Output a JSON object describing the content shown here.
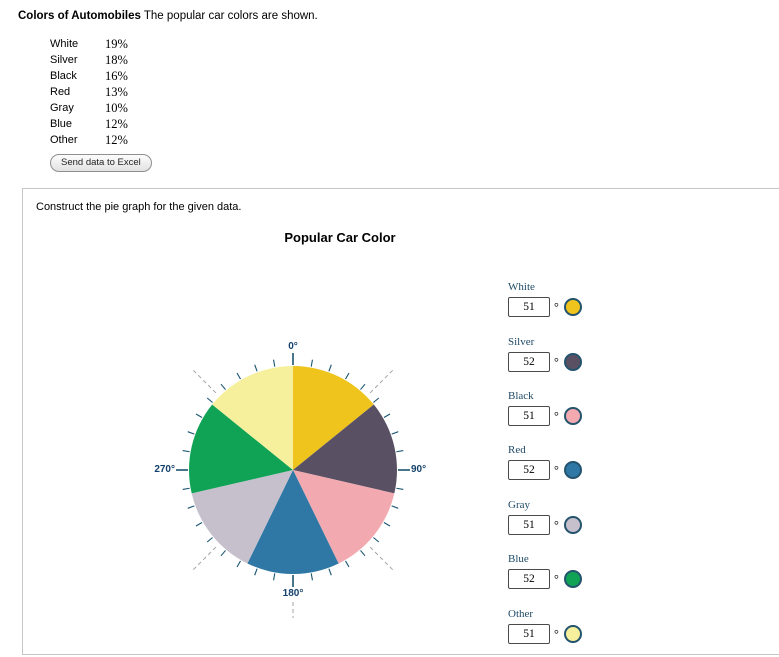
{
  "header": {
    "title": "Colors of Automobiles",
    "subtitle": "The popular car colors are shown."
  },
  "frequency_table": {
    "rows": [
      {
        "label": "White",
        "value": "19%"
      },
      {
        "label": "Silver",
        "value": "18%"
      },
      {
        "label": "Black",
        "value": "16%"
      },
      {
        "label": "Red",
        "value": "13%"
      },
      {
        "label": "Gray",
        "value": "10%"
      },
      {
        "label": "Blue",
        "value": "12%"
      },
      {
        "label": "Other",
        "value": "12%"
      }
    ]
  },
  "excel_button_label": "Send data to Excel",
  "instruction": "Construct the pie graph for the given data.",
  "chart_title": "Popular Car Color",
  "degree_symbol": "°",
  "axis_labels": {
    "top": "0°",
    "right": "90°",
    "bottom": "180°",
    "left": "270°"
  },
  "controls": [
    {
      "label": "White",
      "value": "51",
      "color": "#eec41d"
    },
    {
      "label": "Silver",
      "value": "52",
      "color": "#595064"
    },
    {
      "label": "Black",
      "value": "51",
      "color": "#f2aab0"
    },
    {
      "label": "Red",
      "value": "52",
      "color": "#2f77a4"
    },
    {
      "label": "Gray",
      "value": "51",
      "color": "#c6c0cd"
    },
    {
      "label": "Blue",
      "value": "52",
      "color": "#10a356"
    },
    {
      "label": "Other",
      "value": "51",
      "color": "#f6f09c"
    }
  ],
  "chart_data": {
    "type": "pie",
    "title": "Popular Car Color",
    "categories": [
      "White",
      "Silver",
      "Black",
      "Red",
      "Gray",
      "Blue",
      "Other"
    ],
    "values_degrees": [
      51,
      52,
      51,
      52,
      51,
      52,
      51
    ],
    "percentages": [
      19,
      18,
      16,
      13,
      10,
      12,
      12
    ],
    "colors": [
      "#eec41d",
      "#595064",
      "#f2aab0",
      "#2f77a4",
      "#c6c0cd",
      "#10a356",
      "#f6f09c"
    ],
    "start_angle": 0,
    "direction": "clockwise",
    "axis_tick_interval_deg": 10,
    "axis_labels": [
      "0°",
      "90°",
      "180°",
      "270°"
    ]
  }
}
